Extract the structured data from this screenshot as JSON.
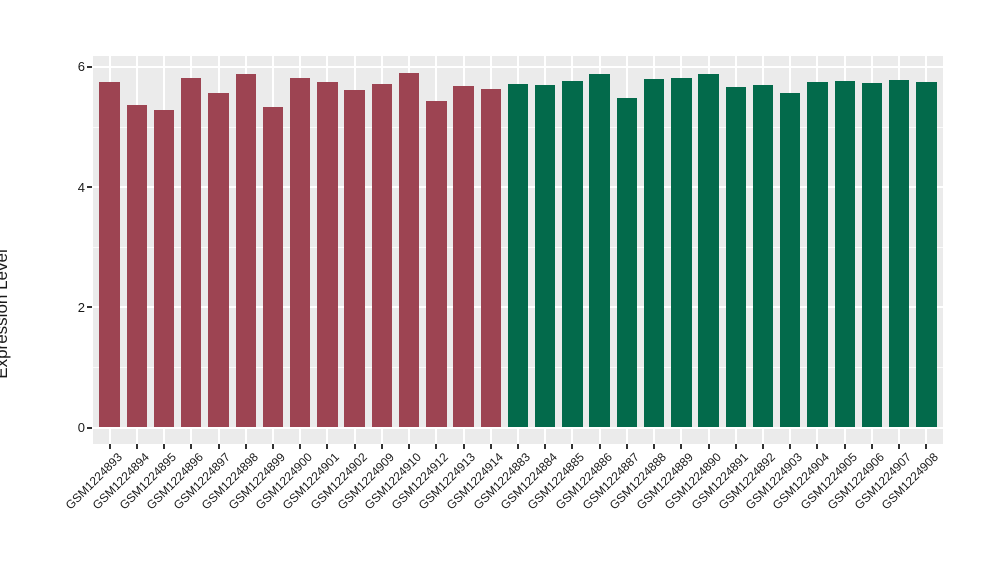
{
  "figure": {
    "background": "#ffffff",
    "panel_background": "#EBEBEB",
    "gridline_color": "#ffffff",
    "text_color": "#1a1a1a"
  },
  "chart_data": {
    "type": "bar",
    "title": "",
    "xlabel": "",
    "ylabel": "Expression Level",
    "ylim": [
      -0.3,
      6.2
    ],
    "yticks": [
      0,
      2,
      4,
      6
    ],
    "ytick_labels": [
      "0",
      "2",
      "4",
      "6"
    ],
    "yticks_minor": [
      1,
      3,
      5
    ],
    "grid": "horizontal major+minor, vertical major at each category; white on gray panel",
    "legend_position": "none",
    "categories": [
      "GSM1224893",
      "GSM1224894",
      "GSM1224895",
      "GSM1224896",
      "GSM1224897",
      "GSM1224898",
      "GSM1224899",
      "GSM1224900",
      "GSM1224901",
      "GSM1224902",
      "GSM1224909",
      "GSM1224910",
      "GSM1224912",
      "GSM1224913",
      "GSM1224914",
      "GSM1224883",
      "GSM1224884",
      "GSM1224885",
      "GSM1224886",
      "GSM1224887",
      "GSM1224888",
      "GSM1224889",
      "GSM1224890",
      "GSM1224891",
      "GSM1224892",
      "GSM1224903",
      "GSM1224904",
      "GSM1224905",
      "GSM1224906",
      "GSM1224907",
      "GSM1224908"
    ],
    "values": [
      5.75,
      5.36,
      5.29,
      5.81,
      5.56,
      5.89,
      5.34,
      5.81,
      5.75,
      5.62,
      5.72,
      5.9,
      5.44,
      5.69,
      5.63,
      5.71,
      5.7,
      5.76,
      5.88,
      5.49,
      5.8,
      5.82,
      5.89,
      5.66,
      5.7,
      5.56,
      5.75,
      5.77,
      5.73,
      5.78,
      5.75
    ],
    "groups": [
      "group1",
      "group1",
      "group1",
      "group1",
      "group1",
      "group1",
      "group1",
      "group1",
      "group1",
      "group1",
      "group1",
      "group1",
      "group1",
      "group1",
      "group1",
      "group2",
      "group2",
      "group2",
      "group2",
      "group2",
      "group2",
      "group2",
      "group2",
      "group2",
      "group2",
      "group2",
      "group2",
      "group2",
      "group2",
      "group2",
      "group2"
    ],
    "group_colors": {
      "group1": "#9D4452",
      "group2": "#036A4B"
    }
  }
}
